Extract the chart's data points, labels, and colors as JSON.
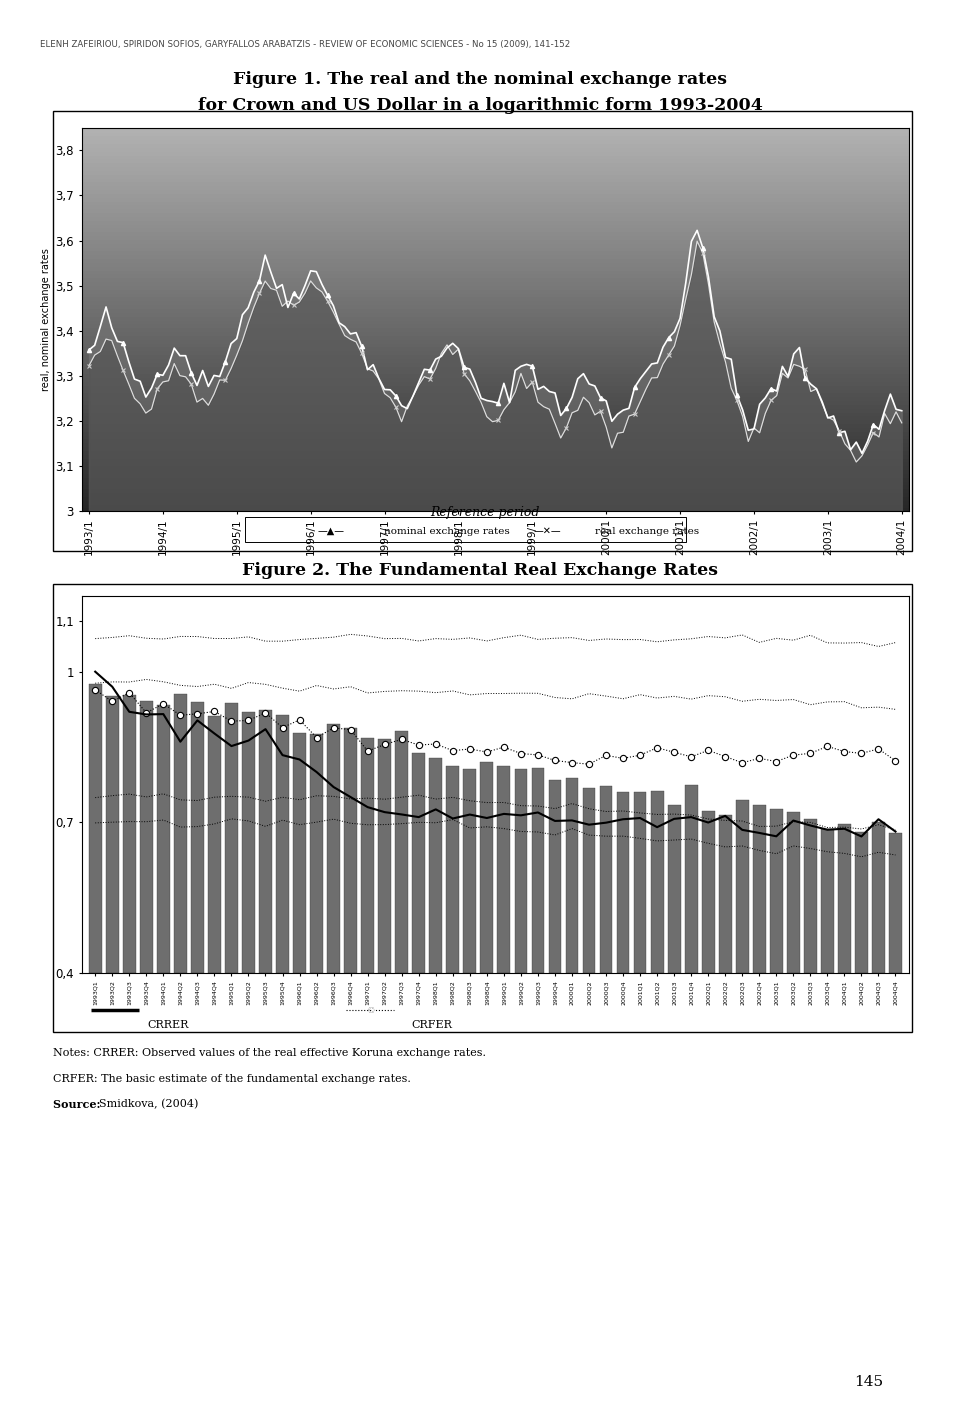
{
  "header": "ELENH ZAFEIRIOU, SPIRIDON SOFIOS, GARYFALLOS ARABATZIS - REVIEW OF ECONOMIC SCIENCES - No 15 (2009), 141-152",
  "fig1_title_line1": "Figure 1. The real and the nominal exchange rates",
  "fig1_title_line2": "for Crown and US Dollar in a logarithmic form 1993-2004",
  "fig1_ylabel": "real, nominal exchange rates",
  "fig1_xlabel": "Reference period",
  "fig1_yticks": [
    3.0,
    3.1,
    3.2,
    3.3,
    3.4,
    3.5,
    3.6,
    3.7,
    3.8
  ],
  "fig1_ytick_labels": [
    "3",
    "3,1",
    "3,2",
    "3,3",
    "3,4",
    "3,5",
    "3,6",
    "3,7",
    "3,8"
  ],
  "fig1_xticks": [
    "1993/1",
    "1994/1",
    "1995/1",
    "1996/1",
    "1997/1",
    "1998/1",
    "1999/1",
    "2000/1",
    "2001/1",
    "2002/1",
    "2003/1",
    "2004/1"
  ],
  "fig1_legend_nominal": "nominal exchange rates",
  "fig1_legend_real": "real exchange rates",
  "fig2_title": "Figure 2. The Fundamental Real Exchange Rates",
  "fig2_ytick_labels": [
    "0,4",
    "0,7",
    "1",
    "1,1"
  ],
  "fig2_ytick_vals": [
    0.4,
    0.7,
    1.0,
    1.1
  ],
  "fig2_legend_crrer": "CRRER",
  "fig2_legend_crfer": "CRFER",
  "notes_line1": "Notes: CRRER: Observed values of the real effective Koruna exchange rates.",
  "notes_line2": "CRFER: The basic estimate of the fundamental exchange rates.",
  "notes_line3_bold": "Source: ",
  "notes_line3_rest": "Smidkova, (2004)",
  "page_number": "145",
  "bg_color": "#ffffff"
}
